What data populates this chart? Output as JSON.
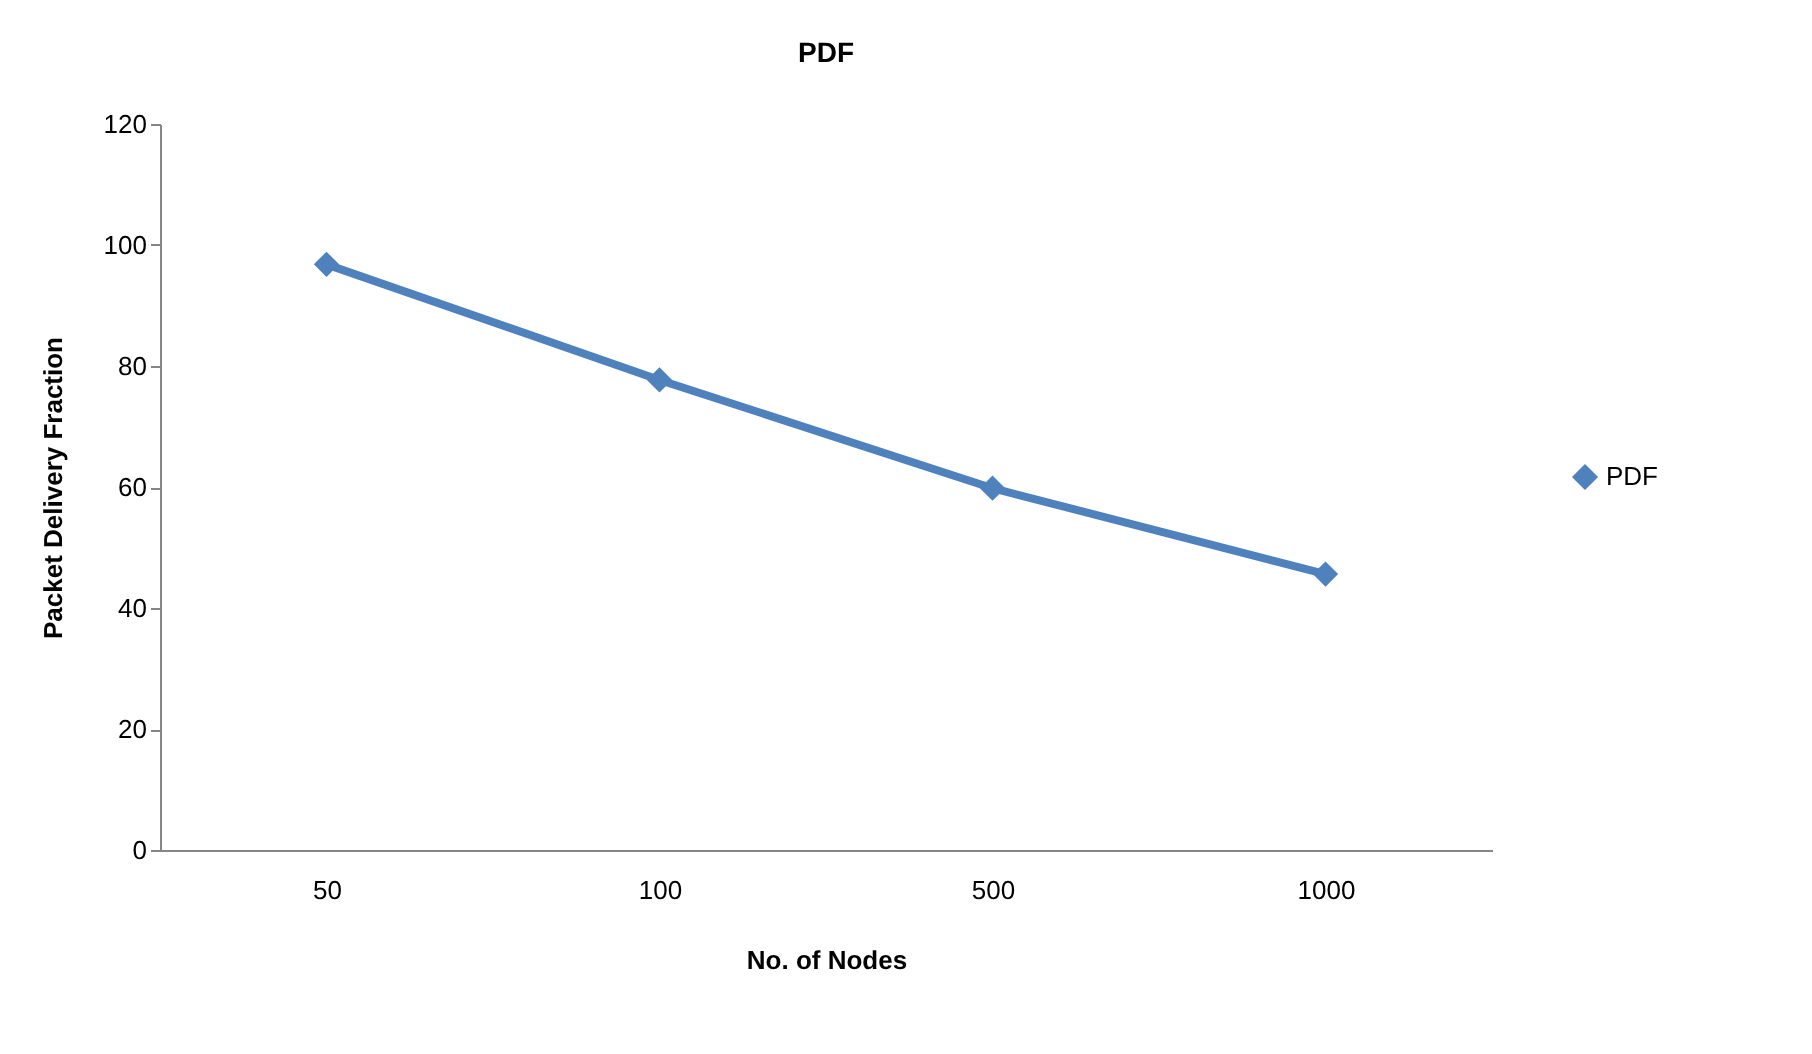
{
  "chart_data": {
    "type": "line",
    "title": "PDF",
    "xlabel": "No. of Nodes",
    "ylabel": "Packet Delivery Fraction",
    "categories": [
      "50",
      "100",
      "500",
      "1000"
    ],
    "series": [
      {
        "name": "PDF",
        "color": "#4f81bd",
        "values": [
          96.8,
          77.7,
          59.8,
          45.6
        ]
      }
    ],
    "ylim": [
      0,
      120
    ],
    "yticks": [
      0,
      20,
      40,
      60,
      80,
      100,
      120
    ],
    "grid": false,
    "legend": "right",
    "marker": "diamond",
    "line_style": "solid"
  }
}
